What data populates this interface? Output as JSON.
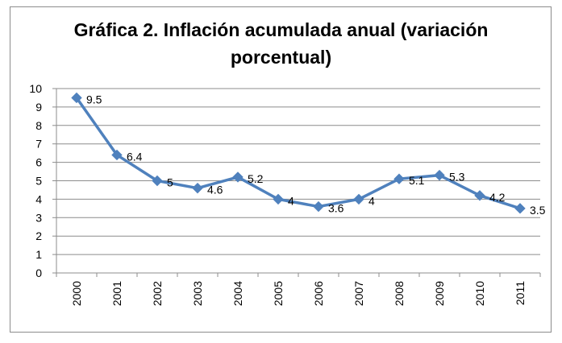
{
  "chart_data": {
    "type": "line",
    "title": "Gráfica 2. Inflación acumulada anual (variación porcentual)",
    "title_lines": [
      "Gráfica 2. Inflación acumulada anual (variación",
      "porcentual)"
    ],
    "xlabel": "",
    "ylabel": "",
    "categories": [
      "2000",
      "2001",
      "2002",
      "2003",
      "2004",
      "2005",
      "2006",
      "2007",
      "2008",
      "2009",
      "2010",
      "2011"
    ],
    "series": [
      {
        "values": [
          9.5,
          6.4,
          5.0,
          4.6,
          5.2,
          4.0,
          3.6,
          4.0,
          5.1,
          5.3,
          4.2,
          3.5
        ],
        "labels": [
          "9.5",
          "6.4",
          "5",
          "4.6",
          "5.2",
          "4",
          "3.6",
          "4",
          "5.1",
          "5.3",
          "4.2",
          "3.5"
        ],
        "color": "#4f81bd"
      }
    ],
    "y_ticks": [
      "0",
      "1",
      "2",
      "3",
      "4",
      "5",
      "6",
      "7",
      "8",
      "9",
      "10"
    ],
    "ylim": [
      0,
      10
    ],
    "grid": true,
    "legend": "none"
  }
}
